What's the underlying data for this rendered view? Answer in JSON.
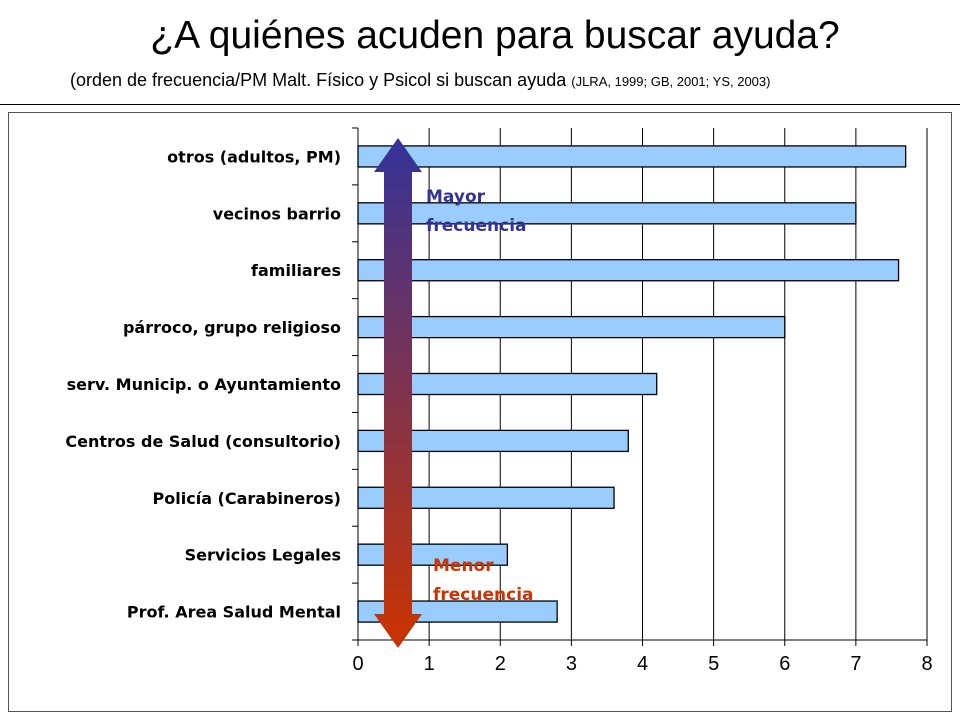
{
  "header": {
    "title": "¿A quiénes acuden para buscar ayuda?",
    "subtitle_main": "(orden de frecuencia/PM  Malt. Físico y Psicol si buscan ayuda",
    "subtitle_refs": "(JLRA, 1999; GB, 2001; YS, 2003)"
  },
  "chart_data": {
    "type": "bar",
    "orientation": "horizontal",
    "categories": [
      "otros (adultos, PM)",
      "vecinos barrio",
      "familiares",
      "párroco, grupo religioso",
      "serv. Municip. o Ayuntamiento",
      "Centros de Salud (consultorio)",
      "Policía (Carabineros)",
      "Servicios Legales",
      "Prof. Area Salud Mental"
    ],
    "values": [
      7.7,
      7.0,
      7.6,
      6.0,
      4.2,
      3.8,
      3.6,
      2.1,
      2.8
    ],
    "xlim": [
      0,
      8
    ],
    "xticks": [
      "0",
      "1",
      "2",
      "3",
      "4",
      "5",
      "6",
      "7",
      "8"
    ],
    "grid": "vertical",
    "bar_color": "#99ccff",
    "annotations": {
      "top": "Mayor frecuencia",
      "top_color": "#333399",
      "bottom": "Menor frecuencia",
      "bottom_color": "#cc3300"
    }
  }
}
